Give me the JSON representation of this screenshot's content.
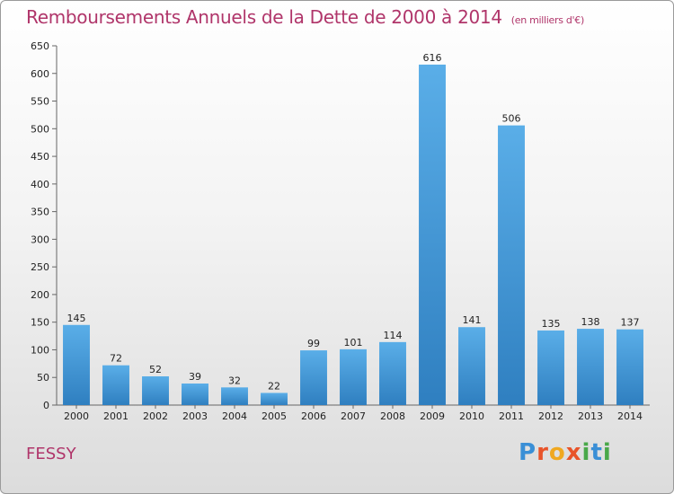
{
  "header": {
    "title": "Remboursements Annuels de la Dette de 2000 à 2014",
    "unit": "(en milliers d'€)"
  },
  "footer": {
    "commune": "FESSY",
    "logo_letters": [
      "P",
      "r",
      "o",
      "x",
      "i",
      "t",
      "i"
    ],
    "logo_colors": [
      "#3a8fd6",
      "#e8542a",
      "#f0a820",
      "#e8542a",
      "#4aa84a",
      "#3a8fd6",
      "#4aa84a"
    ]
  },
  "colors": {
    "bar_light": "#5aaee8",
    "bar_dark": "#2f7fc0",
    "title": "#b0356a"
  },
  "chart_data": {
    "type": "bar",
    "categories": [
      "2000",
      "2001",
      "2002",
      "2003",
      "2004",
      "2005",
      "2006",
      "2007",
      "2008",
      "2009",
      "2010",
      "2011",
      "2012",
      "2013",
      "2014"
    ],
    "values": [
      145,
      72,
      52,
      39,
      32,
      22,
      99,
      101,
      114,
      616,
      141,
      506,
      135,
      138,
      137
    ],
    "data_labels": [
      "145",
      "72",
      "52",
      "39",
      "32",
      "22",
      "99",
      "101",
      "114",
      "616",
      "141",
      "506",
      "135",
      "138",
      "137"
    ],
    "yticks": [
      "0",
      "50",
      "100",
      "150",
      "200",
      "250",
      "300",
      "350",
      "400",
      "450",
      "500",
      "550",
      "600",
      "650"
    ],
    "ylim": [
      0,
      650
    ],
    "grid": false,
    "legend": "none"
  }
}
